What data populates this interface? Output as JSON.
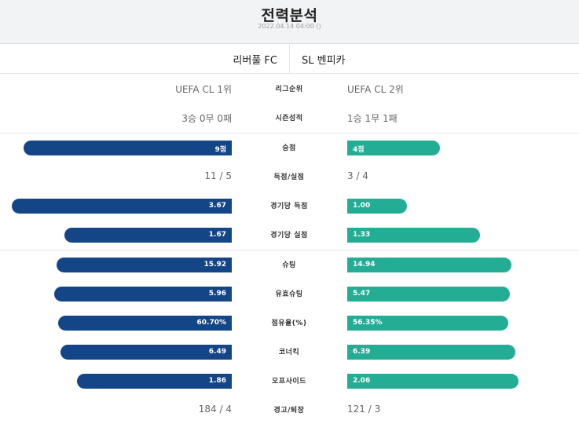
{
  "header": {
    "title": "전력분석",
    "datetime": "2022.04.14 04:00 ()"
  },
  "teams": {
    "home": "리버풀 FC",
    "away": "SL 벤피카"
  },
  "colors": {
    "home": "#144587",
    "away": "#24ad95"
  },
  "text_rows": {
    "league": {
      "label": "리그순위",
      "home": "UEFA CL 1위",
      "away": "UEFA CL 2위"
    },
    "season": {
      "label": "시즌성적",
      "home": "3승 0무 0패",
      "away": "1승 1무 1패"
    },
    "goals": {
      "label": "득점/실점",
      "home": "11 / 5",
      "away": "3 / 4"
    },
    "cards": {
      "label": "경고/퇴장",
      "home": "184 / 4",
      "away": "121 / 3"
    }
  },
  "bar_rows": {
    "points": {
      "label": "승점",
      "home": "9점",
      "away": "4점",
      "home_value": 9,
      "away_value": 4,
      "max": 9.5
    },
    "gpg": {
      "label": "경기당 득점",
      "home": "3.67",
      "away": "1.00",
      "home_value": 3.67,
      "away_value": 1.0,
      "max": 3.67
    },
    "gapg": {
      "label": "경기당 실점",
      "home": "1.67",
      "away": "1.33",
      "home_value": 1.67,
      "away_value": 1.33,
      "max": 2.2
    },
    "shots": {
      "label": "슈팅",
      "home": "15.92",
      "away": "14.94",
      "home_value": 15.92,
      "away_value": 14.94,
      "max": 20
    },
    "sot": {
      "label": "유효슈팅",
      "home": "5.96",
      "away": "5.47",
      "home_value": 5.96,
      "away_value": 5.47,
      "max": 7.4
    },
    "poss": {
      "label": "점유율(%)",
      "home": "60.70%",
      "away": "56.35%",
      "home_value": 60.7,
      "away_value": 56.35,
      "max": 77
    },
    "corners": {
      "label": "코너킥",
      "home": "6.49",
      "away": "6.39",
      "home_value": 6.49,
      "away_value": 6.39,
      "max": 8.35
    },
    "offside": {
      "label": "오프사이드",
      "home": "1.86",
      "away": "2.06",
      "home_value": 1.86,
      "away_value": 2.06,
      "max": 2.65
    }
  }
}
